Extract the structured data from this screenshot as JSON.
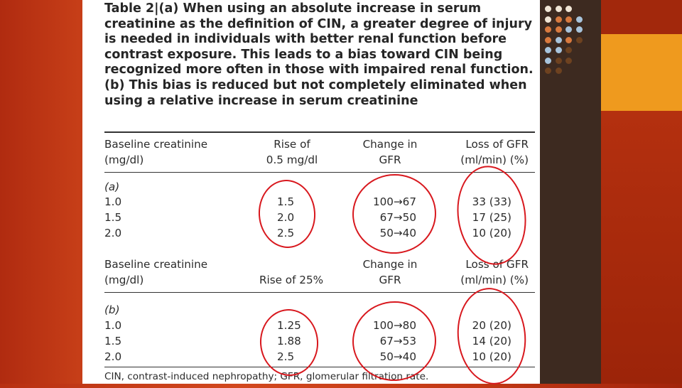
{
  "caption": {
    "lines": [
      "Table 2|(a) When using an absolute increase in serum",
      "creatinine as the definition of CIN, a greater degree of injury",
      "is needed in individuals with better renal function before",
      "contrast exposure. This leads to a bias toward CIN being",
      "recognized more often in those with impaired renal function.",
      "(b) This bias is reduced but not completely eliminated when",
      "using a relative increase in serum creatinine"
    ]
  },
  "section_a": {
    "headers": {
      "col1": [
        "Baseline creatinine",
        "(mg/dl)"
      ],
      "col2": [
        "Rise of",
        "0.5 mg/dl"
      ],
      "col3": [
        "Change in",
        "GFR"
      ],
      "col4": [
        "Loss of GFR",
        "(ml/min) (%)"
      ]
    },
    "label": "(a)",
    "rows": [
      {
        "baseline": "1.0",
        "rise": "1.5",
        "change": "100→67",
        "loss": "33 (33)"
      },
      {
        "baseline": "1.5",
        "rise": "2.0",
        "change": "67→50",
        "loss": "17 (25)"
      },
      {
        "baseline": "2.0",
        "rise": "2.5",
        "change": "50→40",
        "loss": "10 (20)"
      }
    ]
  },
  "section_b": {
    "headers": {
      "col1": [
        "Baseline creatinine",
        "(mg/dl)"
      ],
      "col2": [
        "Rise of 25%"
      ],
      "col3": [
        "Change in",
        "GFR"
      ],
      "col4": [
        "Loss of GFR",
        "(ml/min) (%)"
      ]
    },
    "label": "(b)",
    "rows": [
      {
        "baseline": "1.0",
        "rise": "1.25",
        "change": "100→80",
        "loss": "20 (20)"
      },
      {
        "baseline": "1.5",
        "rise": "1.88",
        "change": "67→53",
        "loss": "14 (20)"
      },
      {
        "baseline": "2.0",
        "rise": "2.5",
        "change": "50→40",
        "loss": "10 (20)"
      }
    ]
  },
  "footnote": "CIN, contrast-induced nephropathy; GFR, glomerular filtration rate.",
  "annotation": {
    "shape": "hand-drawn circle",
    "color": "#d8181e"
  },
  "theme": {
    "background": "#c2401a",
    "sidebar_dark": "#3d2a20",
    "accent_orange": "#ef9a1e",
    "dot_colors": [
      "#f1e6d6",
      "#d97a3f",
      "#a8c4dc",
      "#6e4220"
    ]
  }
}
